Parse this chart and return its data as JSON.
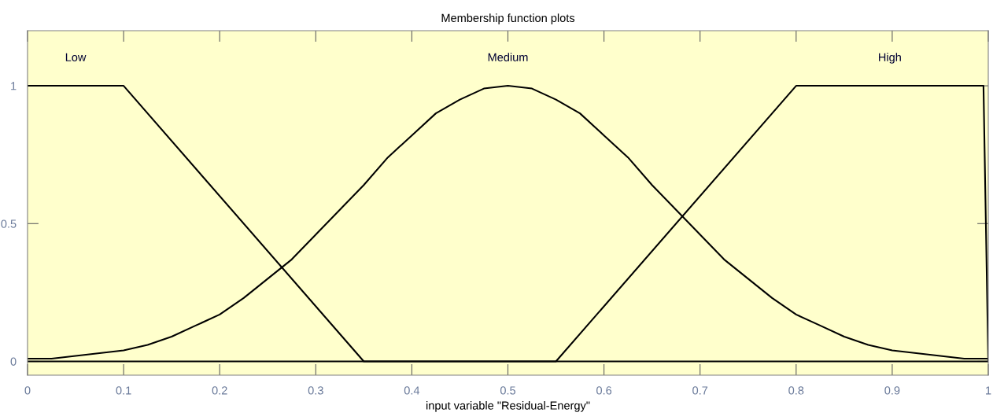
{
  "chart_data": {
    "type": "line",
    "title": "Membership function plots",
    "xlabel": "input variable \"Residual-Energy\"",
    "xlim": [
      0,
      1
    ],
    "xticks": [
      0,
      0.1,
      0.2,
      0.3,
      0.4,
      0.5,
      0.6,
      0.7,
      0.8,
      0.9,
      1
    ],
    "ylim": [
      -0.05,
      1.2
    ],
    "yticks": [
      0,
      0.5,
      1
    ],
    "grid": false,
    "legend": false,
    "marker": "none",
    "line_style": "solid",
    "series": [
      {
        "name": "Low",
        "color": "#000000",
        "x": [
          0,
          0.1,
          0.35,
          1
        ],
        "values": [
          1,
          1,
          0,
          0
        ]
      },
      {
        "name": "Medium",
        "color": "#000000",
        "x": [
          0,
          0.025,
          0.05,
          0.075,
          0.1,
          0.125,
          0.15,
          0.175,
          0.2,
          0.225,
          0.25,
          0.275,
          0.3,
          0.325,
          0.35,
          0.375,
          0.4,
          0.425,
          0.45,
          0.475,
          0.5,
          0.525,
          0.55,
          0.575,
          0.6,
          0.625,
          0.65,
          0.675,
          0.7,
          0.725,
          0.75,
          0.775,
          0.8,
          0.825,
          0.85,
          0.875,
          0.9,
          0.925,
          0.95,
          0.975,
          1
        ],
        "values": [
          0.01,
          0.01,
          0.02,
          0.03,
          0.04,
          0.06,
          0.09,
          0.13,
          0.17,
          0.23,
          0.3,
          0.37,
          0.46,
          0.55,
          0.64,
          0.74,
          0.82,
          0.9,
          0.95,
          0.99,
          1,
          0.99,
          0.95,
          0.9,
          0.82,
          0.74,
          0.64,
          0.55,
          0.46,
          0.37,
          0.3,
          0.23,
          0.17,
          0.13,
          0.09,
          0.06,
          0.04,
          0.03,
          0.02,
          0.01,
          0.01
        ]
      },
      {
        "name": "High",
        "color": "#000000",
        "x": [
          0,
          0.55,
          0.8,
          0.995,
          1
        ],
        "values": [
          0,
          0,
          1,
          1,
          0
        ]
      }
    ]
  }
}
